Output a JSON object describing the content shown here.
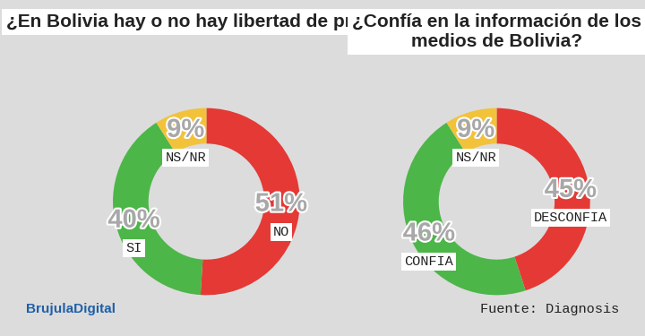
{
  "chart_data": [
    {
      "type": "pie",
      "title": "¿En Bolivia hay o no hay libertad de prensa?",
      "categories": [
        "NO",
        "SI",
        "NS/NR"
      ],
      "values": [
        51,
        40,
        9
      ],
      "value_labels": [
        "51%",
        "40%",
        "9%"
      ],
      "colors": [
        "#e53935",
        "#4cb648",
        "#f2c23a"
      ],
      "data_labels": true
    },
    {
      "type": "pie",
      "title": "¿Confía en la información de los medios de Bolivia?",
      "categories": [
        "DESCONFIA",
        "CONFIA",
        "NS/NR"
      ],
      "values": [
        45,
        46,
        9
      ],
      "value_labels": [
        "45%",
        "46%",
        "9%"
      ],
      "colors": [
        "#e53935",
        "#4cb648",
        "#f2c23a"
      ],
      "data_labels": true
    }
  ],
  "brand": "BrujulaDigital",
  "source": "Fuente: Diagnosis"
}
